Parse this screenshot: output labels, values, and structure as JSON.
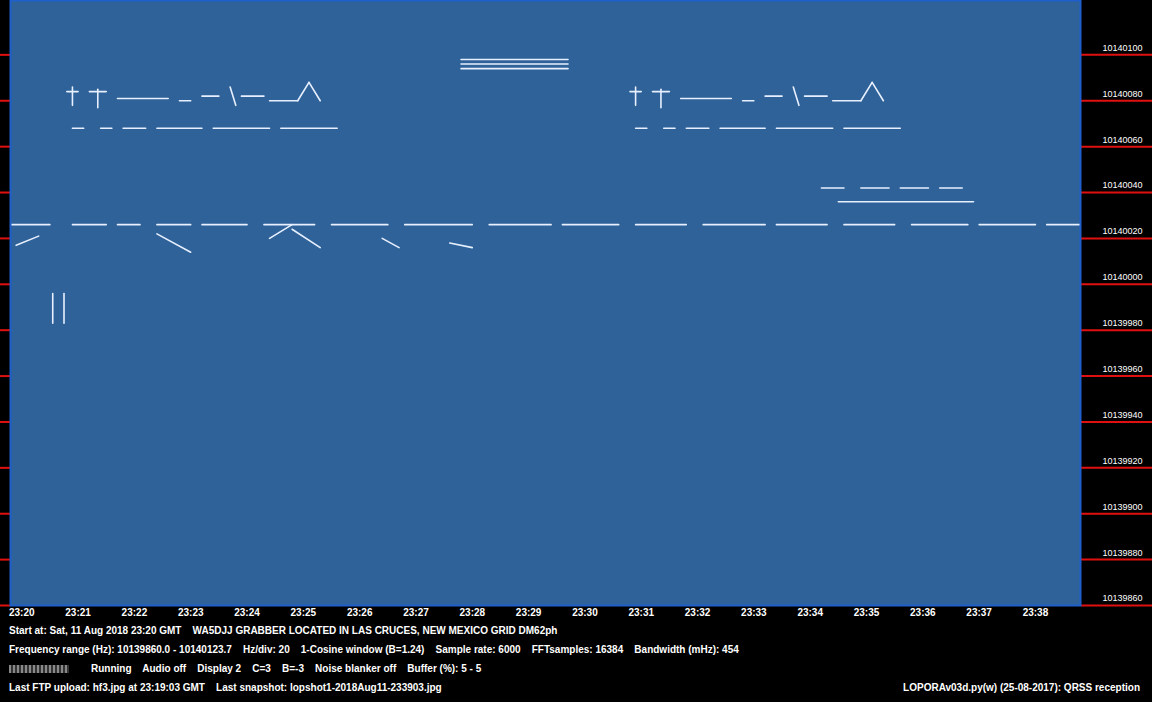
{
  "chart_data": {
    "type": "spectrogram",
    "color": "#e8f0ff",
    "xlim": [
      19.8,
      38.8
    ],
    "xticks": [
      {
        "value": 20,
        "label": "23:20"
      },
      {
        "value": 21,
        "label": "23:21"
      },
      {
        "value": 22,
        "label": "23:22"
      },
      {
        "value": 23,
        "label": "23:23"
      },
      {
        "value": 24,
        "label": "23:24"
      },
      {
        "value": 25,
        "label": "23:25"
      },
      {
        "value": 26,
        "label": "23:26"
      },
      {
        "value": 27,
        "label": "23:27"
      },
      {
        "value": 28,
        "label": "23:28"
      },
      {
        "value": 29,
        "label": "23:29"
      },
      {
        "value": 30,
        "label": "23:30"
      },
      {
        "value": 31,
        "label": "23:31"
      },
      {
        "value": 32,
        "label": "23:32"
      },
      {
        "value": 33,
        "label": "23:33"
      },
      {
        "value": 34,
        "label": "23:34"
      },
      {
        "value": 35,
        "label": "23:35"
      },
      {
        "value": 36,
        "label": "23:36"
      },
      {
        "value": 37,
        "label": "23:37"
      },
      {
        "value": 38,
        "label": "23:38"
      }
    ],
    "ylim": [
      10139860,
      10140123.7
    ],
    "yticks": [
      10139860,
      10139880,
      10139900,
      10139920,
      10139940,
      10139960,
      10139980,
      10140000,
      10140020,
      10140040,
      10140060,
      10140080,
      10140100
    ],
    "traces": [
      {
        "x": [
          27.8,
          29.7
        ],
        "y": [
          10140094,
          10140094
        ]
      },
      {
        "x": [
          27.8,
          29.7
        ],
        "y": [
          10140096,
          10140096
        ]
      },
      {
        "x": [
          27.8,
          29.7
        ],
        "y": [
          10140098,
          10140098
        ]
      },
      {
        "x": [
          20.8,
          21.0
        ],
        "y": [
          10140084,
          10140084
        ]
      },
      {
        "x": [
          20.9,
          20.9
        ],
        "y": [
          10140078,
          10140086
        ]
      },
      {
        "x": [
          21.2,
          21.5
        ],
        "y": [
          10140084,
          10140084
        ]
      },
      {
        "x": [
          21.35,
          21.35
        ],
        "y": [
          10140077,
          10140085
        ]
      },
      {
        "x": [
          21.7,
          22.6
        ],
        "y": [
          10140081,
          10140081
        ]
      },
      {
        "x": [
          22.8,
          23.0
        ],
        "y": [
          10140080,
          10140080
        ]
      },
      {
        "x": [
          23.2,
          23.5
        ],
        "y": [
          10140082,
          10140082
        ]
      },
      {
        "x": [
          23.7,
          23.8
        ],
        "y": [
          10140086,
          10140078
        ]
      },
      {
        "x": [
          23.9,
          24.3
        ],
        "y": [
          10140082,
          10140082
        ]
      },
      {
        "x": [
          24.4,
          24.9
        ],
        "y": [
          10140080,
          10140080
        ]
      },
      {
        "x": [
          24.9,
          25.1
        ],
        "y": [
          10140080,
          10140088
        ]
      },
      {
        "x": [
          25.1,
          25.3
        ],
        "y": [
          10140088,
          10140080
        ]
      },
      {
        "x": [
          20.9,
          21.1
        ],
        "y": [
          10140068,
          10140068
        ]
      },
      {
        "x": [
          21.4,
          21.6
        ],
        "y": [
          10140068,
          10140068
        ]
      },
      {
        "x": [
          21.8,
          22.2
        ],
        "y": [
          10140068,
          10140068
        ]
      },
      {
        "x": [
          22.4,
          23.2
        ],
        "y": [
          10140068,
          10140068
        ]
      },
      {
        "x": [
          23.4,
          24.4
        ],
        "y": [
          10140068,
          10140068
        ]
      },
      {
        "x": [
          24.6,
          25.6
        ],
        "y": [
          10140068,
          10140068
        ]
      },
      {
        "x": [
          30.8,
          31.0
        ],
        "y": [
          10140084,
          10140084
        ]
      },
      {
        "x": [
          30.9,
          30.9
        ],
        "y": [
          10140078,
          10140086
        ]
      },
      {
        "x": [
          31.2,
          31.5
        ],
        "y": [
          10140084,
          10140084
        ]
      },
      {
        "x": [
          31.35,
          31.35
        ],
        "y": [
          10140077,
          10140085
        ]
      },
      {
        "x": [
          31.7,
          32.6
        ],
        "y": [
          10140081,
          10140081
        ]
      },
      {
        "x": [
          32.8,
          33.0
        ],
        "y": [
          10140080,
          10140080
        ]
      },
      {
        "x": [
          33.2,
          33.5
        ],
        "y": [
          10140082,
          10140082
        ]
      },
      {
        "x": [
          33.7,
          33.8
        ],
        "y": [
          10140086,
          10140078
        ]
      },
      {
        "x": [
          33.9,
          34.3
        ],
        "y": [
          10140082,
          10140082
        ]
      },
      {
        "x": [
          34.4,
          34.9
        ],
        "y": [
          10140080,
          10140080
        ]
      },
      {
        "x": [
          34.9,
          35.1
        ],
        "y": [
          10140080,
          10140088
        ]
      },
      {
        "x": [
          35.1,
          35.3
        ],
        "y": [
          10140088,
          10140080
        ]
      },
      {
        "x": [
          30.9,
          31.1
        ],
        "y": [
          10140068,
          10140068
        ]
      },
      {
        "x": [
          31.4,
          31.6
        ],
        "y": [
          10140068,
          10140068
        ]
      },
      {
        "x": [
          31.8,
          32.2
        ],
        "y": [
          10140068,
          10140068
        ]
      },
      {
        "x": [
          32.4,
          33.2
        ],
        "y": [
          10140068,
          10140068
        ]
      },
      {
        "x": [
          33.4,
          34.4
        ],
        "y": [
          10140068,
          10140068
        ]
      },
      {
        "x": [
          34.6,
          35.6
        ],
        "y": [
          10140068,
          10140068
        ]
      },
      {
        "x": [
          34.2,
          34.6
        ],
        "y": [
          10140042,
          10140042
        ]
      },
      {
        "x": [
          34.9,
          35.4
        ],
        "y": [
          10140042,
          10140042
        ]
      },
      {
        "x": [
          35.6,
          36.1
        ],
        "y": [
          10140042,
          10140042
        ]
      },
      {
        "x": [
          36.3,
          36.7
        ],
        "y": [
          10140042,
          10140042
        ]
      },
      {
        "x": [
          34.5,
          36.9
        ],
        "y": [
          10140036,
          10140036
        ]
      },
      {
        "x": [
          19.8,
          20.5
        ],
        "y": [
          10140026,
          10140026
        ]
      },
      {
        "x": [
          20.9,
          21.5
        ],
        "y": [
          10140026,
          10140026
        ]
      },
      {
        "x": [
          21.7,
          22.1
        ],
        "y": [
          10140026,
          10140026
        ]
      },
      {
        "x": [
          22.4,
          23.0
        ],
        "y": [
          10140026,
          10140026
        ]
      },
      {
        "x": [
          23.2,
          24.0
        ],
        "y": [
          10140026,
          10140026
        ]
      },
      {
        "x": [
          24.3,
          25.2
        ],
        "y": [
          10140026,
          10140026
        ]
      },
      {
        "x": [
          25.5,
          26.5
        ],
        "y": [
          10140026,
          10140026
        ]
      },
      {
        "x": [
          26.8,
          28.0
        ],
        "y": [
          10140026,
          10140026
        ]
      },
      {
        "x": [
          28.3,
          29.4
        ],
        "y": [
          10140026,
          10140026
        ]
      },
      {
        "x": [
          29.6,
          30.6
        ],
        "y": [
          10140026,
          10140026
        ]
      },
      {
        "x": [
          30.9,
          31.8
        ],
        "y": [
          10140026,
          10140026
        ]
      },
      {
        "x": [
          32.1,
          33.2
        ],
        "y": [
          10140026,
          10140026
        ]
      },
      {
        "x": [
          33.4,
          34.3
        ],
        "y": [
          10140026,
          10140026
        ]
      },
      {
        "x": [
          34.6,
          35.5
        ],
        "y": [
          10140026,
          10140026
        ]
      },
      {
        "x": [
          35.8,
          36.8
        ],
        "y": [
          10140026,
          10140026
        ]
      },
      {
        "x": [
          37.0,
          38.0
        ],
        "y": [
          10140026,
          10140026
        ]
      },
      {
        "x": [
          38.2,
          38.8
        ],
        "y": [
          10140026,
          10140026
        ]
      },
      {
        "x": [
          19.9,
          20.3
        ],
        "y": [
          10140017,
          10140021
        ]
      },
      {
        "x": [
          22.4,
          23.0
        ],
        "y": [
          10140022,
          10140014
        ]
      },
      {
        "x": [
          24.4,
          24.8
        ],
        "y": [
          10140020,
          10140026
        ]
      },
      {
        "x": [
          24.8,
          25.3
        ],
        "y": [
          10140024,
          10140016
        ]
      },
      {
        "x": [
          26.4,
          26.7
        ],
        "y": [
          10140020,
          10140016
        ]
      },
      {
        "x": [
          27.6,
          28.0
        ],
        "y": [
          10140018,
          10140016
        ]
      },
      {
        "x": [
          20.55,
          20.55
        ],
        "y": [
          10139983,
          10139996
        ]
      },
      {
        "x": [
          20.75,
          20.75
        ],
        "y": [
          10139983,
          10139996
        ]
      }
    ],
    "footer": [
      "Start at: Sat, 11 Aug 2018 23:20 GMT    WA5DJJ GRABBER LOCATED IN LAS CRUCES, NEW MEXICO GRID DM62ph",
      "Frequency range (Hz): 10139860.0 - 10140123.7    Hz/div: 20    1-Cosine window (B=1.24)    Sample rate: 6000    FFTsamples: 16384    Bandwidth (mHz): 454",
      "Running    Audio off    Display 2    C=3    B=-3    Noise blanker off    Buffer (%): 5 - 5",
      "Last FTP upload: hf3.jpg at 23:19:03 GMT    Last snapshot: lopshot1-2018Aug11-233903.jpg"
    ],
    "footer_right": "LOPORAv03d.py(w) (25-08-2017): QRSS reception"
  }
}
